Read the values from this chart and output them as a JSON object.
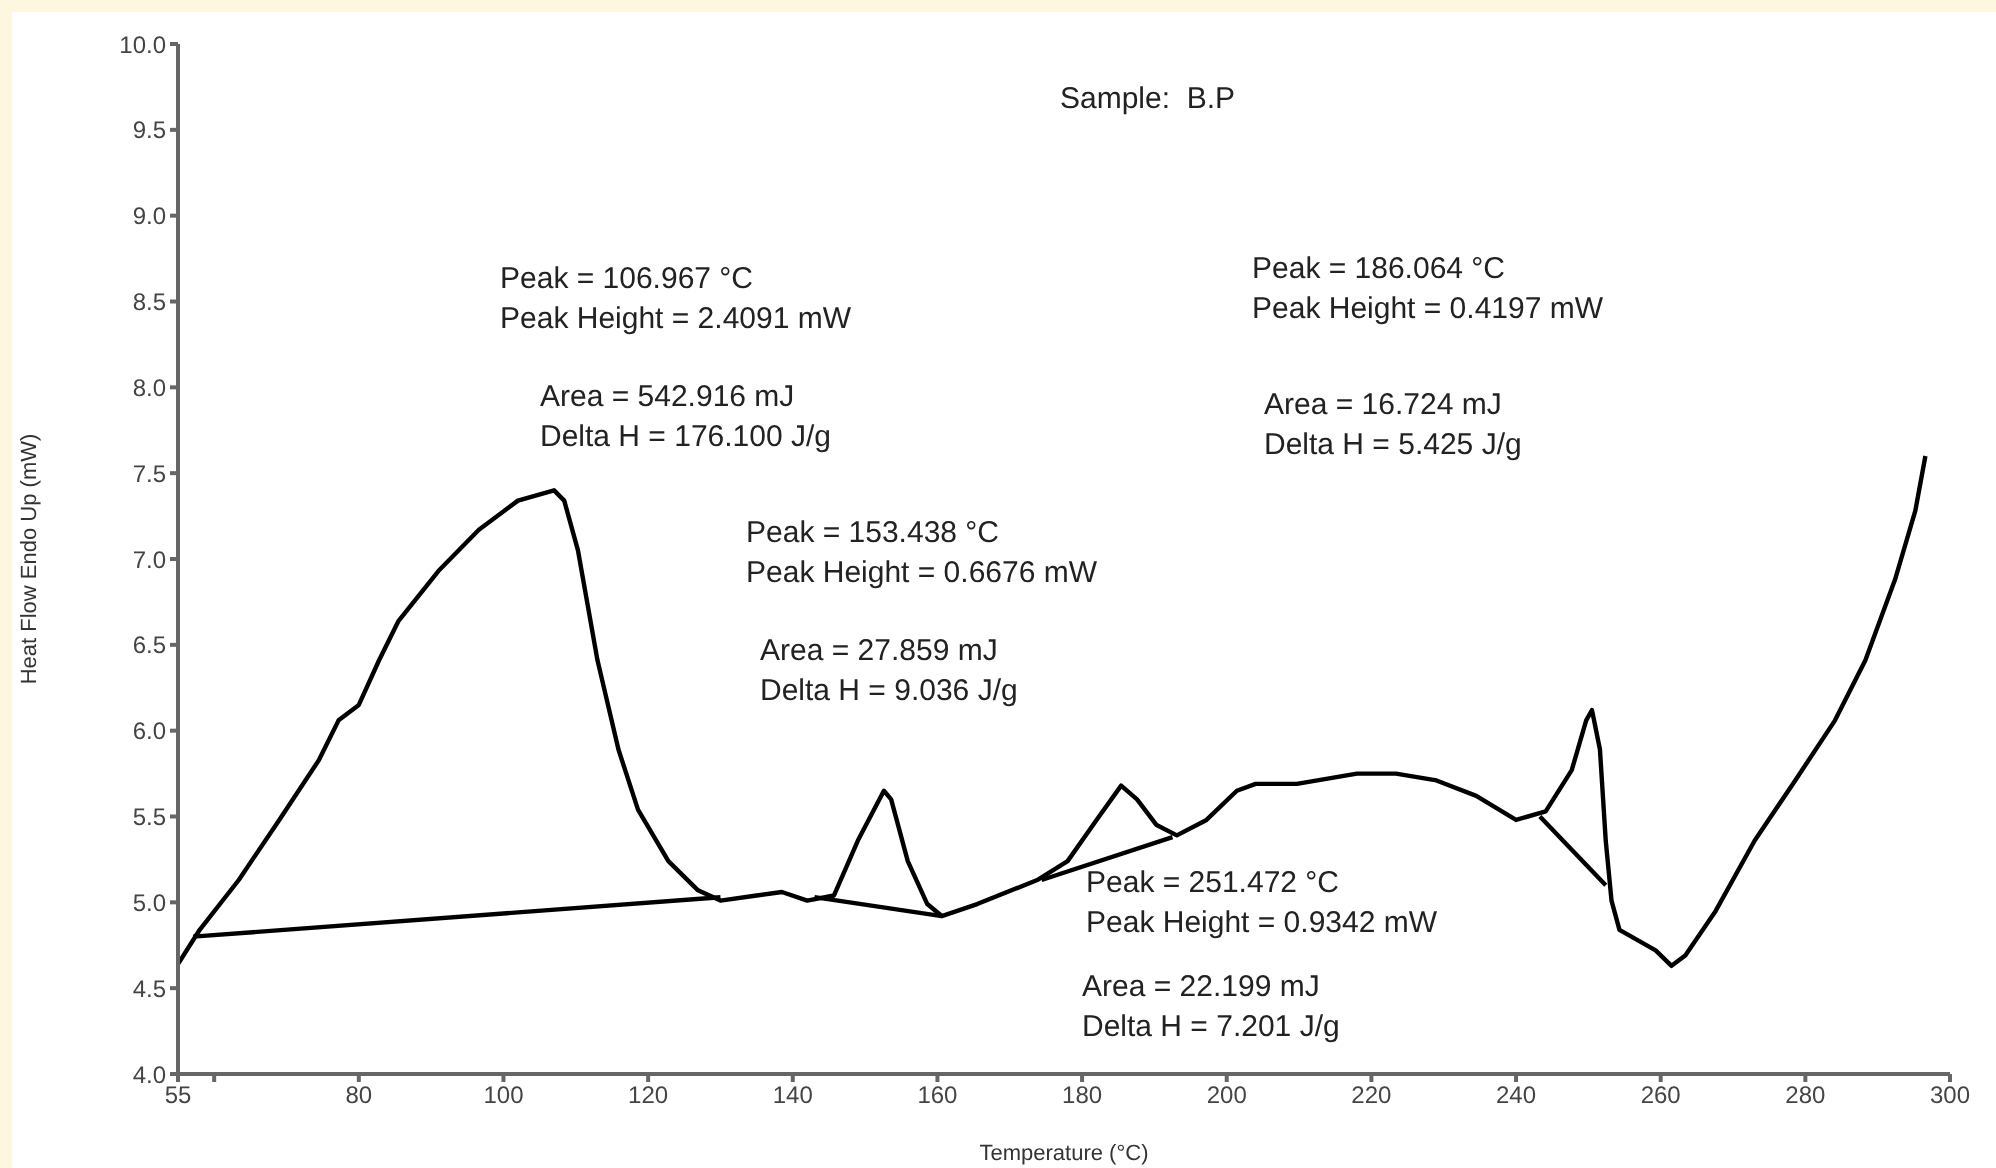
{
  "chart_data": {
    "type": "line",
    "xlabel": "Temperature (°C)",
    "ylabel": "Heat Flow Endo Up (mW)",
    "xlim": [
      55,
      300
    ],
    "xticks": [
      55,
      {
        "value": 60,
        "label": null
      },
      80,
      100,
      120,
      140,
      160,
      180,
      200,
      220,
      240,
      260,
      280,
      300
    ],
    "ylim": [
      4,
      10
    ],
    "yticks": [
      {
        "value": 4,
        "label": "4.0"
      },
      {
        "value": 4.5,
        "label": "4.5"
      },
      {
        "value": 5,
        "label": "5.0"
      },
      {
        "value": 5.5,
        "label": "5.5"
      },
      {
        "value": 6,
        "label": "6.0"
      },
      {
        "value": 6.5,
        "label": "6.5"
      },
      {
        "value": 7,
        "label": "7.0"
      },
      {
        "value": 7.5,
        "label": "7.5"
      },
      {
        "value": 8,
        "label": "8.0"
      },
      {
        "value": 8.5,
        "label": "8.5"
      },
      {
        "value": 9,
        "label": "9.0"
      },
      {
        "value": 9.5,
        "label": "9.5"
      },
      {
        "value": 10,
        "label": "10.0"
      }
    ],
    "grid": false,
    "legend": false,
    "marker": "none",
    "line_style": "solid",
    "series": [
      {
        "color": "#000000",
        "x": [
          55,
          58,
          63.4,
          69,
          74.5,
          77.2,
          80,
          82.8,
          85.5,
          91,
          96.6,
          102,
          107,
          108.4,
          110.3,
          113,
          115.9,
          118.6,
          122.8,
          126.9,
          130,
          135,
          138.5,
          142,
          145.7,
          149,
          152.6,
          153.6,
          155.9,
          158.6,
          160.6,
          165.5,
          173.8,
          178,
          182,
          185.4,
          187.6,
          190.3,
          193.1,
          197.2,
          201.4,
          204,
          209.7,
          218,
          223.4,
          229,
          234.5,
          240,
          244.1,
          247.7,
          249.7,
          250.5,
          251.6,
          252.4,
          253.2,
          254.3,
          259.3,
          261.5,
          263.4,
          267.6,
          273,
          278.6,
          284.1,
          288.3,
          292.4,
          295.2,
          296.6
        ],
        "values": [
          4.64,
          4.84,
          5.13,
          5.48,
          5.83,
          6.06,
          6.15,
          6.41,
          6.64,
          6.93,
          7.17,
          7.34,
          7.4,
          7.34,
          7.05,
          6.41,
          5.89,
          5.54,
          5.24,
          5.07,
          5.01,
          5.04,
          5.06,
          5.01,
          5.04,
          5.36,
          5.65,
          5.6,
          5.24,
          4.99,
          4.92,
          4.99,
          5.13,
          5.24,
          5.48,
          5.68,
          5.6,
          5.45,
          5.39,
          5.48,
          5.65,
          5.69,
          5.69,
          5.75,
          5.75,
          5.71,
          5.62,
          5.48,
          5.53,
          5.77,
          6.06,
          6.12,
          5.89,
          5.36,
          5.01,
          4.84,
          4.72,
          4.63,
          4.69,
          4.95,
          5.36,
          5.71,
          6.06,
          6.41,
          6.88,
          7.28,
          7.6
        ]
      },
      {
        "color": "#000000",
        "x": [
          57.1,
          130
        ],
        "values": [
          4.8,
          5.03
        ]
      },
      {
        "color": "#000000",
        "x": [
          143,
          160.6
        ],
        "values": [
          5.03,
          4.92
        ]
      },
      {
        "color": "#000000",
        "x": [
          174.4,
          192.5
        ],
        "values": [
          5.13,
          5.38
        ]
      },
      {
        "color": "#000000",
        "x": [
          243.3,
          252.4
        ],
        "values": [
          5.5,
          5.1
        ]
      }
    ],
    "annotations": [
      "Sample:  B.P",
      "Peak = 106.967 °C\nPeak Height = 2.4091 mW",
      "Area = 542.916 mJ\nDelta H = 176.100 J/g",
      "Peak = 153.438 °C\nPeak Height = 0.6676 mW",
      "Area = 27.859 mJ\nDelta H = 9.036 J/g",
      "Peak = 186.064 °C\nPeak Height = 0.4197 mW",
      "Area = 16.724 mJ\nDelta H = 5.425 J/g",
      "Peak = 251.472 °C\nPeak Height = 0.9342 mW",
      "Area = 22.199 mJ\nDelta H = 7.201 J/g"
    ]
  }
}
